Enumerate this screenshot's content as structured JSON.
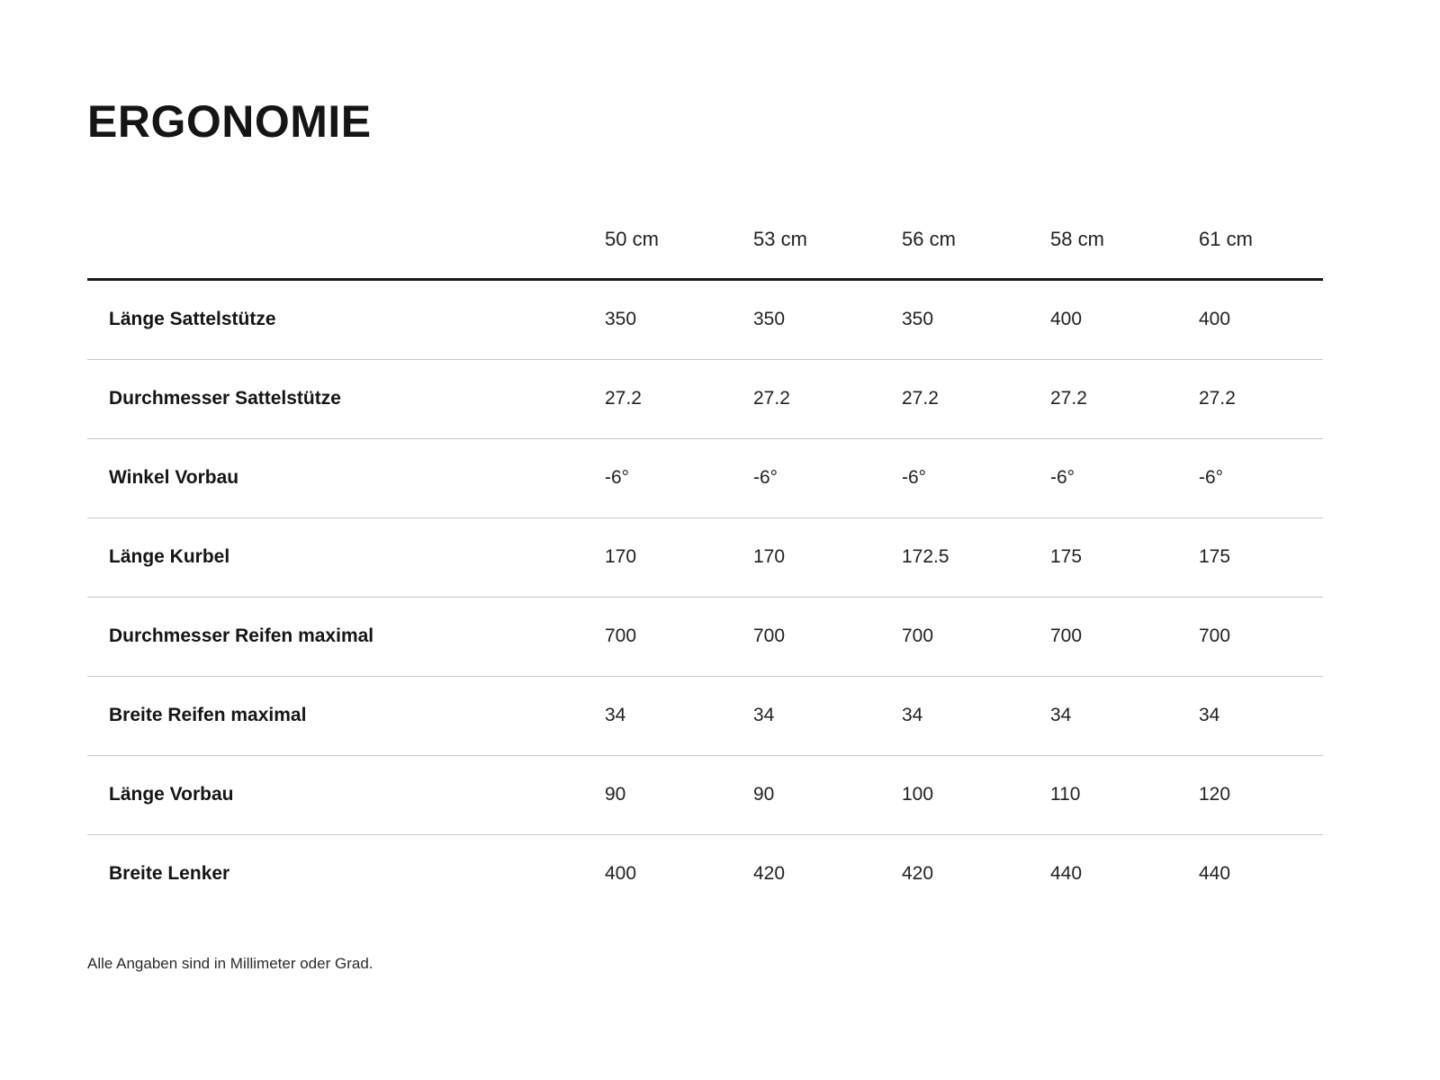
{
  "page": {
    "title": "ERGONOMIE",
    "footnote": "Alle Angaben sind in Millimeter oder Grad."
  },
  "table": {
    "columns": [
      "50 cm",
      "53 cm",
      "56 cm",
      "58 cm",
      "61 cm"
    ],
    "rows": [
      {
        "label": "Länge Sattelstütze",
        "values": [
          "350",
          "350",
          "350",
          "400",
          "400"
        ]
      },
      {
        "label": "Durchmesser Sattelstütze",
        "values": [
          "27.2",
          "27.2",
          "27.2",
          "27.2",
          "27.2"
        ]
      },
      {
        "label": "Winkel Vorbau",
        "values": [
          "-6°",
          "-6°",
          "-6°",
          "-6°",
          "-6°"
        ]
      },
      {
        "label": "Länge Kurbel",
        "values": [
          "170",
          "170",
          "172.5",
          "175",
          "175"
        ]
      },
      {
        "label": "Durchmesser Reifen maximal",
        "values": [
          "700",
          "700",
          "700",
          "700",
          "700"
        ]
      },
      {
        "label": "Breite Reifen maximal",
        "values": [
          "34",
          "34",
          "34",
          "34",
          "34"
        ]
      },
      {
        "label": "Länge Vorbau",
        "values": [
          "90",
          "90",
          "100",
          "110",
          "120"
        ]
      },
      {
        "label": "Breite Lenker",
        "values": [
          "400",
          "420",
          "420",
          "440",
          "440"
        ]
      }
    ]
  },
  "colors": {
    "background": "#ffffff",
    "text": "#1f1f1f",
    "header_rule": "#1a1a1a",
    "row_rule": "#c6c6c6"
  }
}
